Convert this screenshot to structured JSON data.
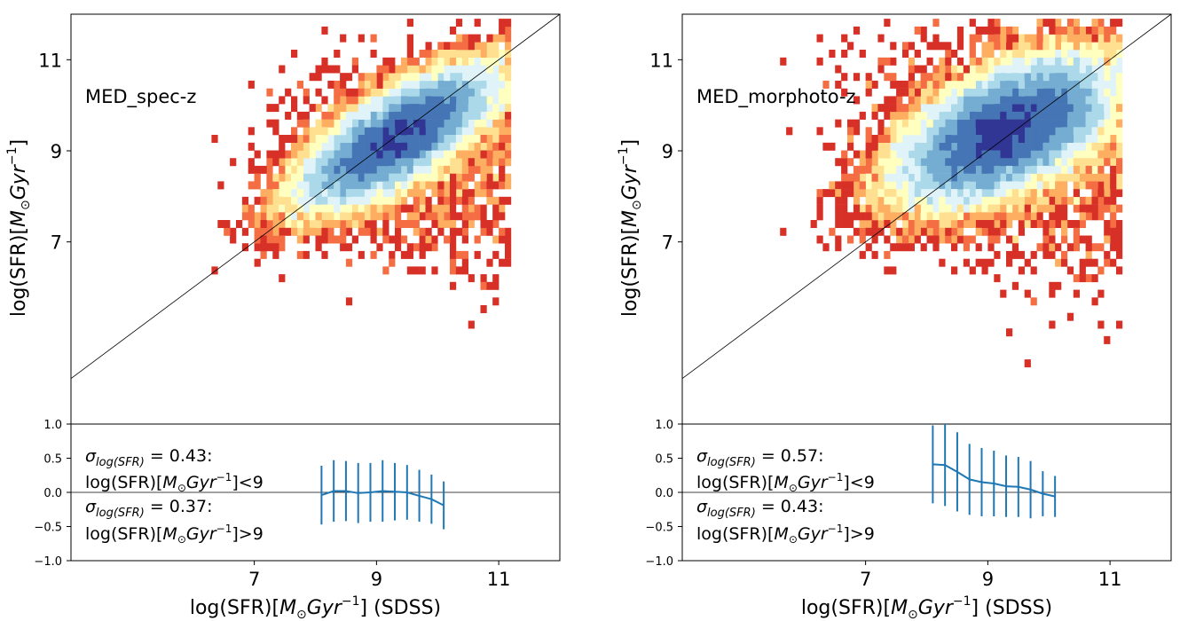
{
  "chart_data": [
    {
      "type": "heatmap",
      "panel": "left",
      "title": "",
      "annotation": "MED_spec-z",
      "xlabel": {
        "main": "log(SFR)[",
        "msun": "M",
        "sub_odot": "⊙",
        "gyr": "Gyr",
        "exp": "−1",
        "tail": "] (SDSS)"
      },
      "ylabel": {
        "main": "log(SFR)[",
        "msun": "M",
        "sub_odot": "⊙",
        "gyr": "Gyr",
        "exp": "−1",
        "tail": "]"
      },
      "xlim": [
        4.0,
        12.0
      ],
      "ylim": [
        3.0,
        12.0
      ],
      "xticks": [
        "7",
        "9",
        "11"
      ],
      "yticks": [
        "7",
        "9",
        "11"
      ],
      "density": {
        "center_x": 9.35,
        "center_y": 9.3,
        "slope": 0.93,
        "spread_major": 1.0,
        "spread_minor": 0.38,
        "core_x_range": [
          7.6,
          10.6
        ]
      },
      "colormap": [
        "#313695",
        "#4575b4",
        "#74add1",
        "#abd9e9",
        "#e0f3f8",
        "#ffffbf",
        "#fee090",
        "#fdae61",
        "#f46d43",
        "#d73027",
        "#a50026"
      ],
      "residual": {
        "ylim": [
          -1.0,
          1.0
        ],
        "yticks": [
          "1.0",
          "0.5",
          "0.0",
          "−0.5",
          "−1.0"
        ],
        "x": [
          8.1,
          8.3,
          8.5,
          8.7,
          8.9,
          9.1,
          9.3,
          9.5,
          9.7,
          9.9,
          10.1
        ],
        "mean": [
          -0.04,
          0.02,
          0.02,
          -0.01,
          0.0,
          0.02,
          0.01,
          0.0,
          -0.05,
          -0.1,
          -0.19
        ],
        "err": [
          0.43,
          0.45,
          0.44,
          0.44,
          0.43,
          0.45,
          0.42,
          0.4,
          0.38,
          0.36,
          0.35
        ],
        "color": "#1f77b4",
        "sigma_low": {
          "value": "= 0.43:",
          "condition": "<9"
        },
        "sigma_high": {
          "value": "= 0.37:",
          "condition": ">9"
        }
      }
    },
    {
      "type": "heatmap",
      "panel": "right",
      "title": "",
      "annotation": "MED_morphoto-z",
      "xlabel": {
        "main": "log(SFR)[",
        "msun": "M",
        "sub_odot": "⊙",
        "gyr": "Gyr",
        "exp": "−1",
        "tail": "] (SDSS)"
      },
      "ylabel": {
        "main": "log(SFR)[",
        "msun": "M",
        "sub_odot": "⊙",
        "gyr": "Gyr",
        "exp": "−1",
        "tail": "]"
      },
      "xlim": [
        4.0,
        12.0
      ],
      "ylim": [
        3.0,
        12.0
      ],
      "xticks": [
        "7",
        "9",
        "11"
      ],
      "yticks": [
        "7",
        "9",
        "11"
      ],
      "density": {
        "center_x": 9.3,
        "center_y": 9.45,
        "slope": 0.85,
        "spread_major": 1.05,
        "spread_minor": 0.55,
        "core_x_range": [
          7.0,
          10.9
        ]
      },
      "colormap": [
        "#313695",
        "#4575b4",
        "#74add1",
        "#abd9e9",
        "#e0f3f8",
        "#ffffbf",
        "#fee090",
        "#fdae61",
        "#f46d43",
        "#d73027",
        "#a50026"
      ],
      "residual": {
        "ylim": [
          -1.0,
          1.0
        ],
        "yticks": [
          "1.0",
          "0.5",
          "0.0",
          "−0.5",
          "−1.0"
        ],
        "x": [
          8.1,
          8.3,
          8.5,
          8.7,
          8.9,
          9.1,
          9.3,
          9.5,
          9.7,
          9.9,
          10.1
        ],
        "mean": [
          0.41,
          0.4,
          0.3,
          0.19,
          0.15,
          0.13,
          0.09,
          0.08,
          0.04,
          -0.02,
          -0.06
        ],
        "err": [
          0.57,
          0.6,
          0.58,
          0.52,
          0.5,
          0.48,
          0.45,
          0.44,
          0.42,
          0.33,
          0.3
        ],
        "color": "#1f77b4",
        "sigma_low": {
          "value": "= 0.57:",
          "condition": "<9"
        },
        "sigma_high": {
          "value": "= 0.43:",
          "condition": ">9"
        }
      }
    }
  ]
}
